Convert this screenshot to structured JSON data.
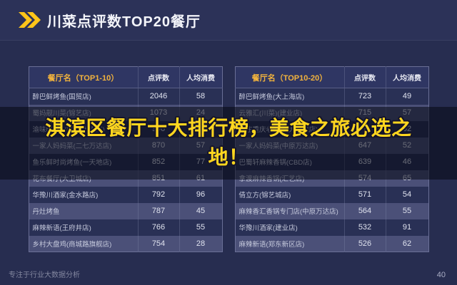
{
  "header": {
    "title": "川菜点评数TOP20餐厅"
  },
  "banner": {
    "text": "淇滨区餐厅十大排行榜，美食之旅必选之地！"
  },
  "chart_data": [
    {
      "type": "table",
      "name_header": "餐厅名（TOP1-10）",
      "columns": [
        "点评数",
        "人均消费"
      ],
      "rows": [
        [
          "醉巴鲜烤鱼(国贸店)",
          "2046",
          "58"
        ],
        [
          "蜀妈靓川菜(锦艺店)",
          "1073",
          "24"
        ],
        [
          "渝味晓宇火锅(熙地港店)",
          "996",
          "69"
        ],
        [
          "一家人妈妈菜(二七万达店)",
          "870",
          "57"
        ],
        [
          "鱼乐鲜时尚烤鱼(一天地店)",
          "852",
          "77"
        ],
        [
          "花布餐厅(大卫城店)",
          "851",
          "61"
        ],
        [
          "华豫川酒家(金水路店)",
          "792",
          "96"
        ],
        [
          "丹灶烤鱼",
          "787",
          "45"
        ],
        [
          "麻辣新语(王府井店)",
          "766",
          "55"
        ],
        [
          "乡村大盘鸡(商城路旗舰店)",
          "754",
          "28"
        ]
      ]
    },
    {
      "type": "table",
      "name_header": "餐厅名（TOP10-20）",
      "columns": [
        "点评数",
        "人均消费"
      ],
      "rows": [
        [
          "醉巴鲜烤鱼(大上海店)",
          "723",
          "49"
        ],
        [
          "云雅汇(川菜)(建业店)",
          "715",
          "57"
        ],
        [
          "辣庄重庆老火锅(大卫城店)",
          "671",
          "62"
        ],
        [
          "一家人妈妈菜(中原万达店)",
          "647",
          "52"
        ],
        [
          "巴蜀轩麻辣香锅(CBD店)",
          "639",
          "46"
        ],
        [
          "拿渡麻辣香锅(汇艺店)",
          "574",
          "65"
        ],
        [
          "倩立方(锦艺城店)",
          "571",
          "54"
        ],
        [
          "麻辣香汇香锅专门店(中原万达店)",
          "564",
          "55"
        ],
        [
          "华豫川酒家(建业店)",
          "532",
          "91"
        ],
        [
          "麻辣新语(郑东新区店)",
          "526",
          "62"
        ]
      ]
    }
  ],
  "footer": {
    "tagline": "专注于行业大数据分析",
    "page_number": "40"
  },
  "colors": {
    "background": "#272d50",
    "accent_yellow": "#ffc519",
    "banner_text": "#ffd61f",
    "table_header_name": "#f2b33d",
    "row_dark": "#293055",
    "row_light": "#4b5078",
    "banner_overlay": "rgba(6,8,18,0.55)"
  }
}
